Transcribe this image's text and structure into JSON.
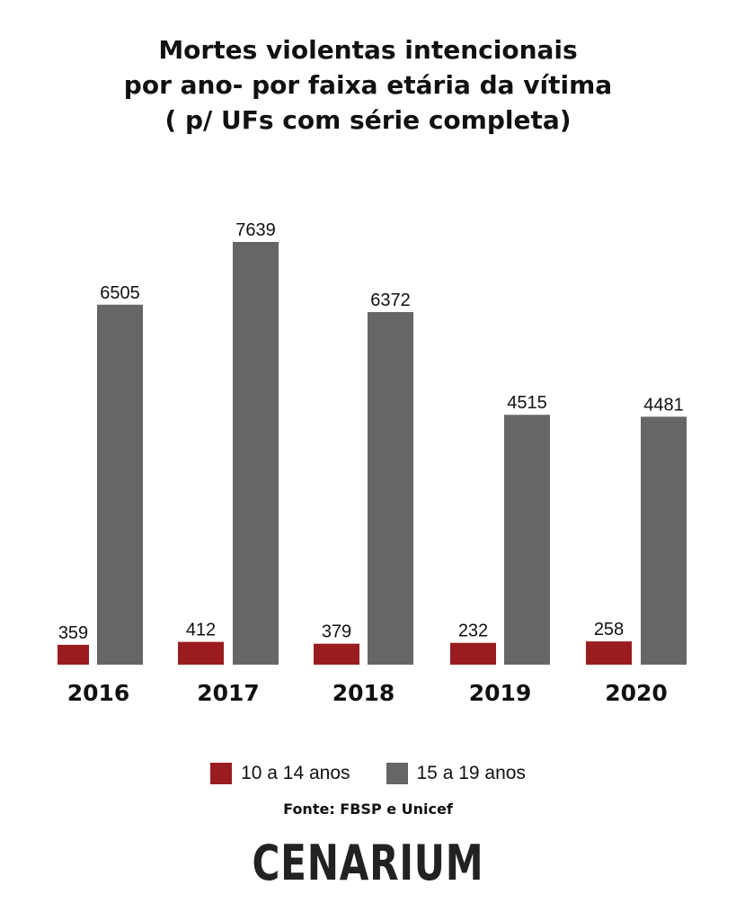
{
  "chart_data": {
    "type": "bar",
    "title": "Mortes violentas intencionais por ano- por faixa etária da vítima ( p/ UFs com série completa)",
    "title_lines": [
      "Mortes violentas intencionais",
      "por ano- por faixa etária da vítima",
      "( p/ UFs com série completa)"
    ],
    "categories": [
      "2016",
      "2017",
      "2018",
      "2019",
      "2020"
    ],
    "series": [
      {
        "name": "10 a 14 anos",
        "values": [
          359,
          412,
          379,
          232,
          258
        ],
        "color": "#9b1c1f"
      },
      {
        "name": "15 a 19 anos",
        "values": [
          6505,
          7639,
          6372,
          4515,
          4481
        ],
        "color": "#666666"
      }
    ],
    "ylim": [
      0,
      7639
    ],
    "grid": false,
    "legend_position": "bottom-center",
    "data_labels": true
  },
  "source": "Fonte: FBSP e Unicef",
  "logo": "CENARIUM"
}
